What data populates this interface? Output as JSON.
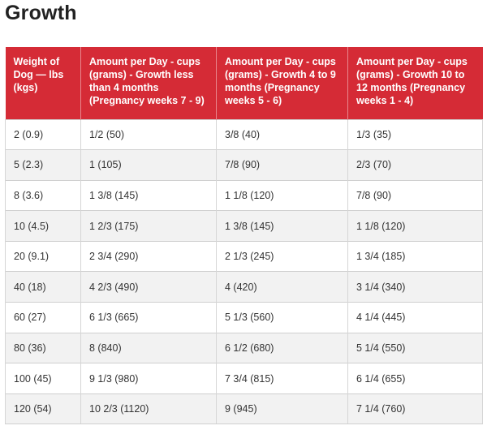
{
  "page": {
    "title": "Growth"
  },
  "table": {
    "headers": [
      "Weight of Dog — lbs (kgs)",
      "Amount per Day - cups (grams) - Growth less than 4 months (Pregnancy weeks 7 - 9)",
      "Amount per Day - cups (grams) - Growth 4 to 9 months (Pregnancy weeks 5 - 6)",
      "Amount per Day - cups (grams) - Growth 10 to 12 months (Pregnancy weeks 1 - 4)"
    ],
    "rows": [
      [
        "2 (0.9)",
        "1/2 (50)",
        "3/8 (40)",
        "1/3 (35)"
      ],
      [
        "5 (2.3)",
        "1 (105)",
        "7/8 (90)",
        "2/3 (70)"
      ],
      [
        "8 (3.6)",
        "1 3/8 (145)",
        "1 1/8 (120)",
        "7/8 (90)"
      ],
      [
        "10 (4.5)",
        "1 2/3 (175)",
        "1 3/8 (145)",
        "1 1/8 (120)"
      ],
      [
        "20 (9.1)",
        "2 3/4 (290)",
        "2 1/3 (245)",
        "1 3/4 (185)"
      ],
      [
        "40 (18)",
        "4 2/3 (490)",
        "4 (420)",
        "3 1/4 (340)"
      ],
      [
        "60 (27)",
        "6 1/3 (665)",
        "5 1/3 (560)",
        "4 1/4 (445)"
      ],
      [
        "80 (36)",
        "8 (840)",
        "6 1/2 (680)",
        "5 1/4 (550)"
      ],
      [
        "100 (45)",
        "9 1/3 (980)",
        "7 3/4 (815)",
        "6 1/4 (655)"
      ],
      [
        "120 (54)",
        "10 2/3 (1120)",
        "9 (945)",
        "7 1/4 (760)"
      ]
    ]
  },
  "colors": {
    "header_background": "#d52b36",
    "header_text": "#ffffff",
    "zebra_row": "#f2f2f2"
  }
}
